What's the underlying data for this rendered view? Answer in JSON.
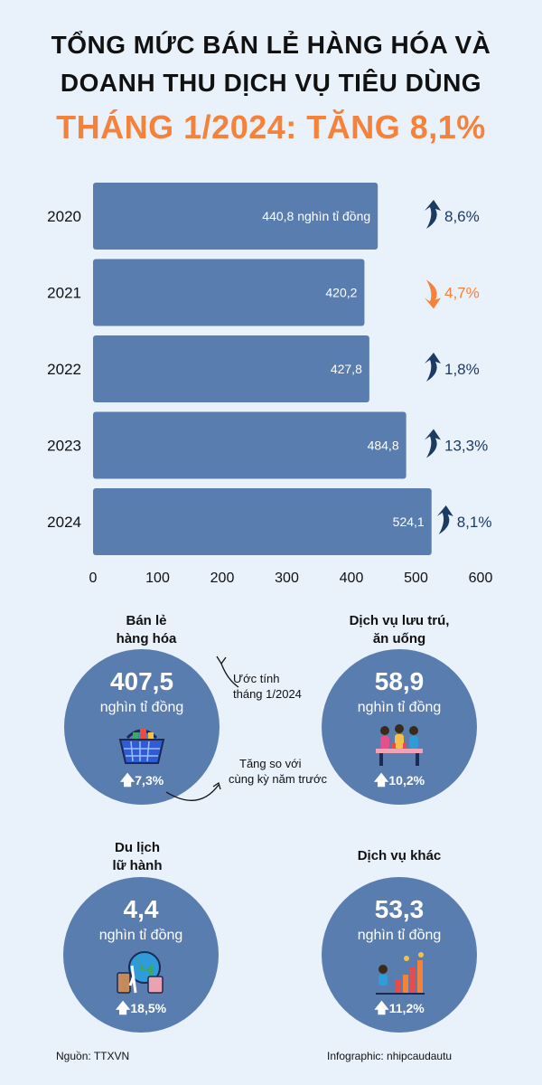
{
  "title": {
    "line1": "TỔNG MỨC BÁN LẺ HÀNG HÓA VÀ",
    "line2": "DOANH THU DỊCH VỤ TIÊU DÙNG",
    "line3": "THÁNG 1/2024: TĂNG 8,1%"
  },
  "chart_data": {
    "type": "bar",
    "orientation": "horizontal",
    "categories": [
      "2020",
      "2021",
      "2022",
      "2023",
      "2024"
    ],
    "values": [
      440.8,
      420.2,
      427.8,
      484.8,
      524.1
    ],
    "value_labels": [
      "440,8 nghìn tỉ đồng",
      "420,2",
      "427,8",
      "484,8",
      "524,1"
    ],
    "changes": [
      {
        "text": "8,6%",
        "direction": "up"
      },
      {
        "text": "4,7%",
        "direction": "down"
      },
      {
        "text": "1,8%",
        "direction": "up"
      },
      {
        "text": "13,3%",
        "direction": "up"
      },
      {
        "text": "8,1%",
        "direction": "up"
      }
    ],
    "xlim": [
      0,
      600
    ],
    "xticks": [
      "0",
      "100",
      "200",
      "300",
      "400",
      "500",
      "600"
    ],
    "bar_color": "#5a7db0",
    "up_color": "#1c3b63",
    "down_color": "#f5823a"
  },
  "sections": [
    {
      "label_line1": "Bán lẻ",
      "label_line2": "hàng hóa",
      "value": "407,5",
      "unit": "nghìn tỉ đồng",
      "change": "7,3%",
      "icon": "shopping-basket-icon"
    },
    {
      "label_line1": "Dịch vụ lưu trú,",
      "label_line2": "ăn uống",
      "value": "58,9",
      "unit": "nghìn tỉ đồng",
      "change": "10,2%",
      "icon": "dining-people-icon"
    },
    {
      "label_line1": "Du lịch",
      "label_line2": "lữ hành",
      "value": "4,4",
      "unit": "nghìn tỉ đồng",
      "change": "18,5%",
      "icon": "globe-luggage-icon"
    },
    {
      "label_line1": "Dịch vụ khác",
      "label_line2": "",
      "value": "53,3",
      "unit": "nghìn tỉ đồng",
      "change": "11,2%",
      "icon": "growth-chart-icon"
    }
  ],
  "notes": {
    "estimate_line1": "Ước tính",
    "estimate_line2": "tháng 1/2024",
    "compare_line1": "Tăng so với",
    "compare_line2": "cùng kỳ năm trước"
  },
  "footer": {
    "source": "Nguồn: TTXVN",
    "credit": "Infographic: nhipcaudautu"
  },
  "colors": {
    "background": "#e9f1fb",
    "accent_orange": "#f5823a",
    "circle_blue": "#5a7db0"
  }
}
